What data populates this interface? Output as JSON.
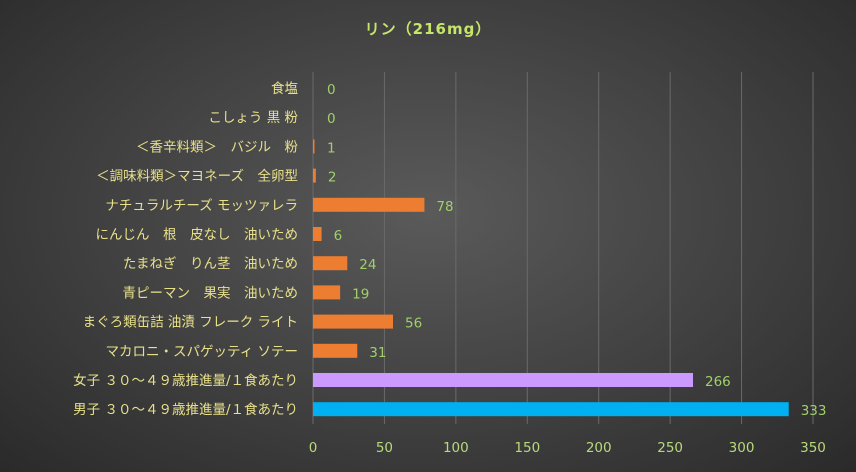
{
  "chart_data": {
    "type": "bar",
    "orientation": "horizontal",
    "title": "リン（216mg）",
    "categories": [
      "食塩",
      "こしょう 黒 粉",
      "＜香辛料類＞　バジル　粉",
      "＜調味料類＞マヨネーズ　全卵型",
      "ナチュラルチーズ モッツァレラ",
      "にんじん　根　皮なし　油いため",
      "たまねぎ　りん茎　油いため",
      "青ピーマン　果実　油いため",
      "まぐろ類缶詰 油漬 フレーク ライト",
      "マカロニ・スパゲッティ ソテー",
      "女子 ３０～４９歳推進量/１食あたり",
      "男子 ３０～４９歳推進量/１食あたり"
    ],
    "values": [
      0,
      0,
      1,
      2,
      78,
      6,
      24,
      19,
      56,
      31,
      266,
      333
    ],
    "colors": [
      "#ed7d31",
      "#ed7d31",
      "#ed7d31",
      "#ed7d31",
      "#ed7d31",
      "#ed7d31",
      "#ed7d31",
      "#ed7d31",
      "#ed7d31",
      "#ed7d31",
      "#cc99ff",
      "#00b0f0"
    ],
    "xlim": [
      0,
      350
    ],
    "xticks": [
      0,
      50,
      100,
      150,
      200,
      250,
      300,
      350
    ],
    "grid": true,
    "legend": "none"
  }
}
